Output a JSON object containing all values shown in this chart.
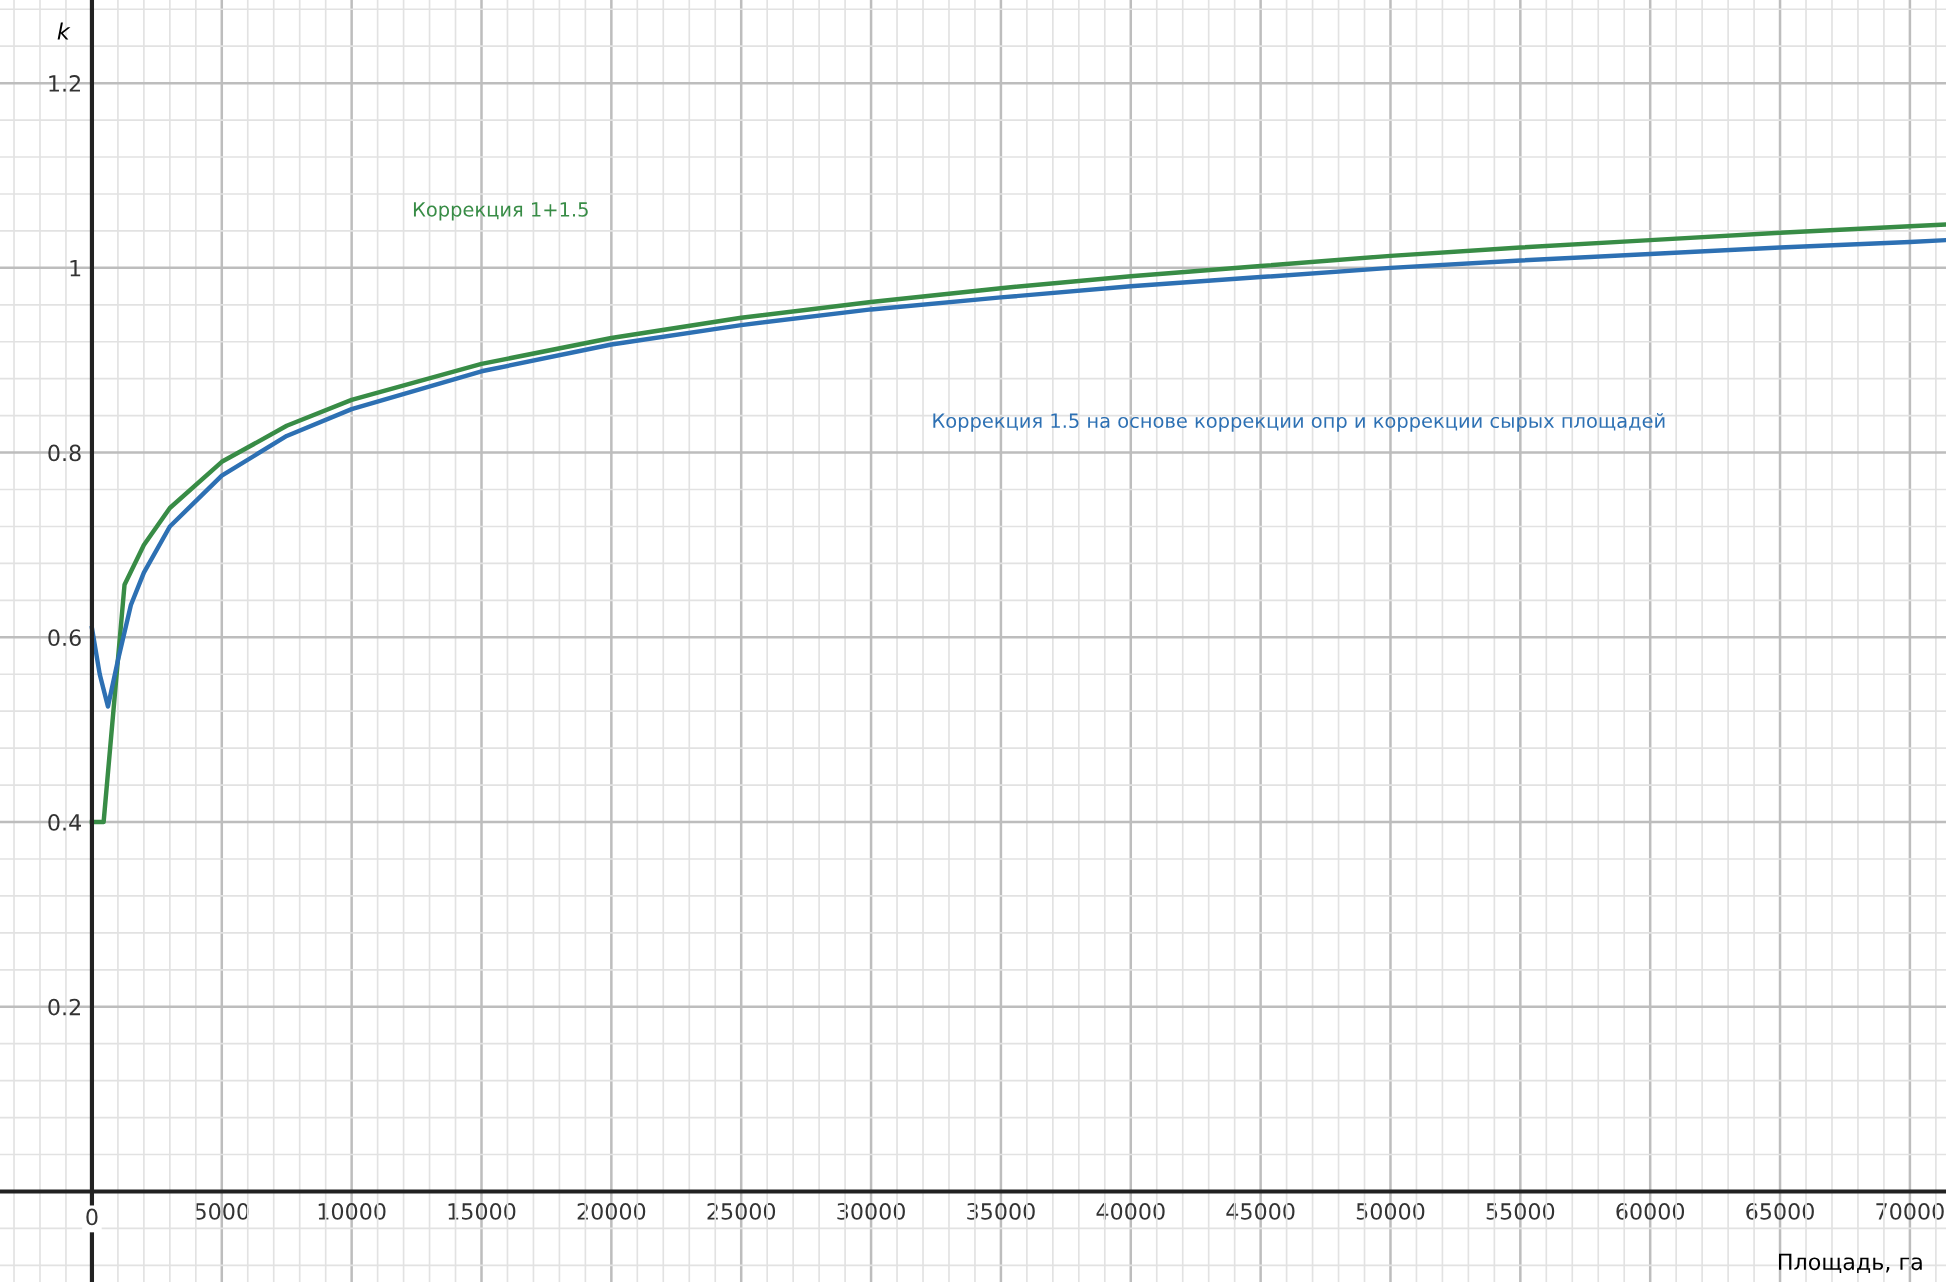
{
  "chart_data": {
    "type": "line",
    "xlabel": "Площадь, га",
    "ylabel": "k",
    "xlim": [
      -3540,
      71390
    ],
    "ylim": [
      -0.098,
      1.29
    ],
    "xticks": [
      0,
      5000,
      10000,
      15000,
      20000,
      25000,
      30000,
      35000,
      40000,
      45000,
      50000,
      55000,
      60000,
      65000,
      70000
    ],
    "yticks": [
      0.2,
      0.4,
      0.6,
      0.8,
      1,
      1.2
    ],
    "grid": true,
    "marker": "none",
    "line_style": "solid",
    "series": [
      {
        "name": "Коррекция 1+1.5",
        "color": "#388c46",
        "x": [
          0,
          450,
          1255,
          2000,
          3000,
          5000,
          7500,
          10000,
          15000,
          20000,
          25000,
          30000,
          35000,
          40000,
          45000,
          50000,
          55000,
          60000,
          65000,
          70000,
          71390
        ],
        "values": [
          0.4,
          0.4,
          0.657,
          0.7,
          0.74,
          0.79,
          0.829,
          0.857,
          0.896,
          0.924,
          0.946,
          0.963,
          0.978,
          0.991,
          1.002,
          1.013,
          1.022,
          1.03,
          1.038,
          1.045,
          1.047
        ]
      },
      {
        "name": "Коррекция 1.5 на основе коррекции опр и коррекции сырых площадей",
        "color": "#2d70b3",
        "x": [
          0,
          300,
          616,
          1000,
          1500,
          2000,
          3000,
          5000,
          7500,
          10000,
          15000,
          20000,
          25000,
          30000,
          35000,
          40000,
          45000,
          50000,
          55000,
          60000,
          65000,
          70000,
          71390
        ],
        "values": [
          0.61,
          0.56,
          0.525,
          0.575,
          0.635,
          0.67,
          0.72,
          0.775,
          0.818,
          0.847,
          0.888,
          0.917,
          0.938,
          0.955,
          0.968,
          0.98,
          0.99,
          1.0,
          1.008,
          1.015,
          1.022,
          1.028,
          1.03
        ]
      }
    ]
  }
}
